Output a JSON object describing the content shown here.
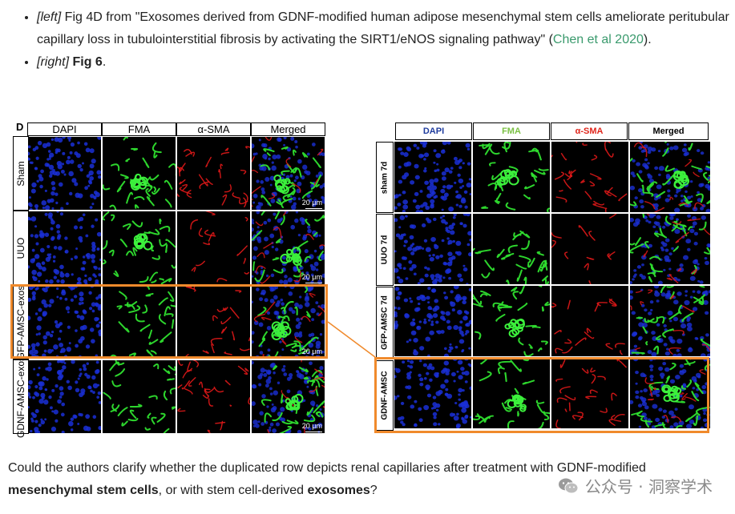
{
  "bullets": [
    {
      "tag": "[left]",
      "text_before": " Fig 4D from \"Exosomes derived from GDNF-modified human adipose mesenchymal stem cells ameliorate peritubular capillary loss in tubulointerstitial fibrosis by activating the SIRT1/eNOS signaling pathway\" (",
      "link": "Chen et al 2020",
      "text_after": ")."
    },
    {
      "tag": "[right]",
      "bold": "Fig 6",
      "text_after": "."
    }
  ],
  "figure_left": {
    "panel_letter": "D",
    "columns": [
      "DAPI",
      "FMA",
      "α-SMA",
      "Merged"
    ],
    "rows": [
      "Sham",
      "UUO",
      "GFP-AMSC-exos",
      "GDNF-AMSC-exos"
    ],
    "scale_bar": "20 μm"
  },
  "figure_right": {
    "columns": [
      "DAPI",
      "FMA",
      "α-SMA",
      "Merged"
    ],
    "column_colors": [
      "#1f3c9e",
      "#7bc144",
      "#e0261b",
      "#000000"
    ],
    "rows": [
      "sham 7d",
      "UUO 7d",
      "GFP-AMSC 7d",
      "GDNF-AMSC"
    ]
  },
  "question": {
    "part1": "Could the authors clarify whether the duplicated row depicts renal capillaries after treatment with GDNF-modified ",
    "bold1": "mesenchymal stem cells",
    "part2": ", or with stem cell-derived ",
    "bold2": "exosomes",
    "part3": "?"
  },
  "watermark": {
    "text": "公众号 · 洞察学术",
    "icon": "wechat-icon"
  },
  "colors": {
    "highlight": "#f08a2c",
    "link": "#3a9a6d"
  }
}
